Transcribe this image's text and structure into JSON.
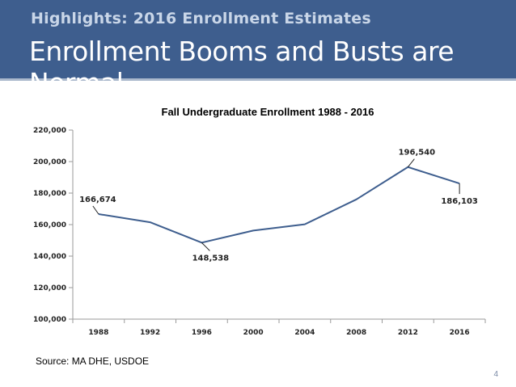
{
  "slide": {
    "subtitle": "Highlights: 2016 Enrollment Estimates",
    "title": "Enrollment Booms and Busts are Normal",
    "source": "Source: MA DHE, USDOE",
    "page_number": "4",
    "header_color": "#3e5e8e"
  },
  "chart_data": {
    "type": "line",
    "title": "Fall Undergraduate Enrollment 1988 - 2016",
    "xlabel": "",
    "ylabel": "",
    "categories": [
      "1988",
      "1992",
      "1996",
      "2000",
      "2004",
      "2008",
      "2012",
      "2016"
    ],
    "series": [
      {
        "name": "Fall Undergraduate Enrollment",
        "color": "#3e5e8e",
        "values": [
          166674,
          161500,
          148538,
          156200,
          160200,
          176000,
          196540,
          186103
        ]
      }
    ],
    "ylim": [
      100000,
      220000
    ],
    "yticks": [
      100000,
      120000,
      140000,
      160000,
      180000,
      200000,
      220000
    ],
    "ytick_labels": [
      "100,000",
      "120,000",
      "140,000",
      "160,000",
      "180,000",
      "200,000",
      "220,000"
    ],
    "annotations": [
      {
        "index": 0,
        "label": "166,674",
        "placement": "above-left"
      },
      {
        "index": 2,
        "label": "148,538",
        "placement": "below"
      },
      {
        "index": 6,
        "label": "196,540",
        "placement": "above"
      },
      {
        "index": 7,
        "label": "186,103",
        "placement": "below"
      }
    ],
    "grid": false
  }
}
